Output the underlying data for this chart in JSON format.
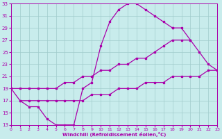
{
  "bg_color": "#c8ecec",
  "grid_color": "#a0cccc",
  "line_color": "#aa00aa",
  "xlabel": "Windchill (Refroidissement éolien,°C)",
  "xlim": [
    0,
    23
  ],
  "ylim": [
    13,
    33
  ],
  "xtick_labels": [
    "0",
    "1",
    "2",
    "3",
    "4",
    "5",
    "6",
    "7",
    "8",
    "9",
    "10",
    "11",
    "12",
    "13",
    "14",
    "15",
    "16",
    "17",
    "18",
    "19",
    "20",
    "21",
    "22",
    "23"
  ],
  "yticks": [
    13,
    15,
    17,
    19,
    21,
    23,
    25,
    27,
    29,
    31,
    33
  ],
  "curve1_x": [
    0,
    1,
    2,
    3,
    4,
    5,
    6,
    7,
    8,
    9,
    10,
    11,
    12,
    13,
    14,
    15,
    16,
    17,
    18
  ],
  "curve1_y": [
    19,
    17,
    16,
    16,
    14,
    13,
    13,
    13,
    19,
    20,
    26,
    30,
    32,
    33,
    33,
    32,
    31,
    30,
    29
  ],
  "curve2_x": [
    0,
    1,
    2,
    3,
    4,
    5,
    6,
    7,
    8,
    9,
    10,
    11,
    12,
    13,
    14,
    15,
    16,
    17,
    18,
    19,
    20
  ],
  "curve2_y": [
    19,
    19,
    19,
    19,
    19,
    19,
    20,
    20,
    21,
    21,
    22,
    22,
    23,
    23,
    24,
    24,
    25,
    26,
    27,
    27,
    27
  ],
  "curve3_x": [
    1,
    2,
    3,
    4,
    5,
    6,
    7,
    8,
    9,
    10,
    11,
    12,
    13,
    14,
    15,
    16,
    17,
    18,
    19,
    20,
    21,
    22,
    23
  ],
  "curve3_y": [
    17,
    17,
    17,
    17,
    17,
    17,
    17,
    17,
    18,
    18,
    18,
    19,
    19,
    19,
    20,
    20,
    20,
    21,
    21,
    21,
    21,
    22,
    22
  ],
  "curve4_x": [
    18,
    19,
    20,
    21,
    22,
    23
  ],
  "curve4_y": [
    29,
    29,
    27,
    25,
    23,
    22
  ]
}
